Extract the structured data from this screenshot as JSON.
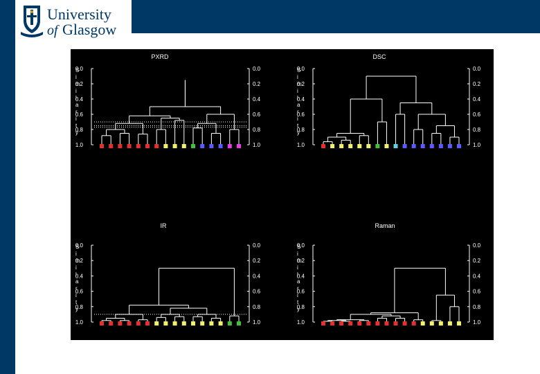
{
  "header": {
    "logo_line1": "University",
    "logo_line2_prefix": "of",
    "logo_line2_word": "Glasgow",
    "colors": {
      "brand_navy": "#003865",
      "figure_background": "#000000"
    }
  },
  "figure": {
    "axis_label": "Similarity",
    "tick_labels": [
      "0.0",
      "0.2",
      "0.4",
      "0.6",
      "0.8",
      "1.0"
    ]
  },
  "chart_data": [
    {
      "type": "dendrogram",
      "title": "PXRD",
      "ylabel": "Similarity",
      "ylim": [
        0.0,
        1.0
      ],
      "leaf_colors": [
        "#e03030",
        "#e03030",
        "#e03030",
        "#e03030",
        "#e03030",
        "#e03030",
        "#e03030",
        "#f0f070",
        "#f0f070",
        "#f0f070",
        "#40c040",
        "#5a5aff",
        "#5a5aff",
        "#5a5aff",
        "#e040e0",
        "#e040e0"
      ],
      "threshold_levels": [
        0.7,
        0.75,
        0.77
      ]
    },
    {
      "type": "dendrogram",
      "title": "DSC",
      "ylabel": "Similarity",
      "ylim": [
        0.0,
        1.0
      ],
      "leaf_colors": [
        "#e03030",
        "#f0f070",
        "#f0f070",
        "#f0f070",
        "#f0f070",
        "#f0f070",
        "#40c040",
        "#f0f070",
        "#60d0e0",
        "#5a5aff",
        "#5a5aff",
        "#5a5aff",
        "#5a5aff",
        "#5a5aff",
        "#5a5aff",
        "#5a5aff"
      ],
      "threshold_levels": []
    },
    {
      "type": "dendrogram",
      "title": "IR",
      "ylabel": "Similarity",
      "ylim": [
        0.0,
        1.0
      ],
      "leaf_colors": [
        "#e03030",
        "#e03030",
        "#e03030",
        "#e03030",
        "#e03030",
        "#e03030",
        "#f0f070",
        "#f0f070",
        "#f0f070",
        "#f0f070",
        "#f0f070",
        "#f0f070",
        "#f0f070",
        "#f0f070",
        "#40c040",
        "#40c040"
      ],
      "threshold_levels": [
        0.9
      ]
    },
    {
      "type": "dendrogram",
      "title": "Raman",
      "ylabel": "Similarity",
      "ylim": [
        0.0,
        1.0
      ],
      "leaf_colors": [
        "#e03030",
        "#e03030",
        "#e03030",
        "#e03030",
        "#e03030",
        "#e03030",
        "#e03030",
        "#e03030",
        "#e03030",
        "#e03030",
        "#e03030",
        "#f0f070",
        "#f0f070",
        "#f0f070",
        "#f0f070",
        "#f0f070"
      ],
      "threshold_levels": []
    }
  ]
}
